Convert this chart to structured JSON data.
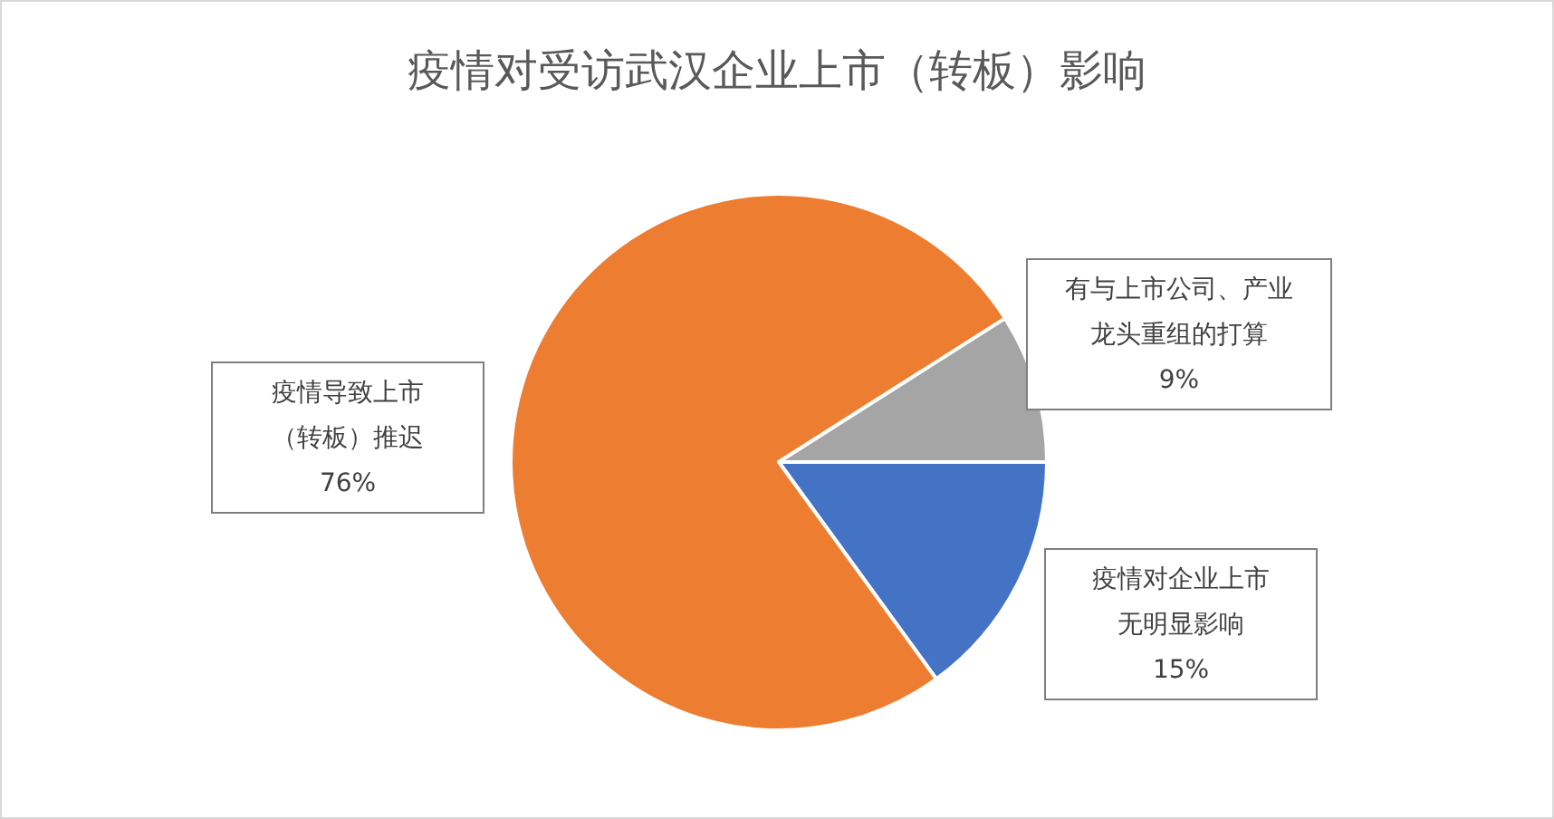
{
  "chart_data": {
    "type": "pie",
    "title": "疫情对受访武汉企业上市（转板）影响",
    "categories": [
      "疫情对企业上市无明显影响",
      "疫情导致上市（转板）推迟",
      "有与上市公司、产业龙头重组的打算"
    ],
    "values": [
      15,
      76,
      9
    ],
    "colors": [
      "#4472c4",
      "#ed7d31",
      "#a5a5a5"
    ],
    "value_labels": [
      "15%",
      "76%",
      "9%"
    ]
  }
}
